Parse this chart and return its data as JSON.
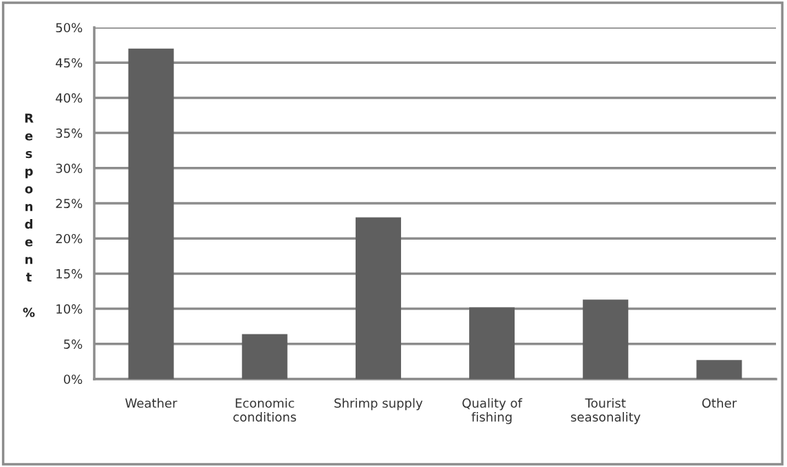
{
  "chart_data": {
    "type": "bar",
    "ylabel": "Respondent %",
    "categories": [
      "Weather",
      "Economic\nconditions",
      "Shrimp supply",
      "Quality of\nfishing",
      "Tourist\nseasonality",
      "Other"
    ],
    "values": [
      47.0,
      6.4,
      23.0,
      10.2,
      11.3,
      2.7
    ],
    "color": "#5f5f5f",
    "ylim": [
      0,
      50
    ],
    "yticks": [
      {
        "value": 0,
        "label": "0%"
      },
      {
        "value": 5,
        "label": "5%"
      },
      {
        "value": 10,
        "label": "10%"
      },
      {
        "value": 15,
        "label": "15%"
      },
      {
        "value": 20,
        "label": "20%"
      },
      {
        "value": 25,
        "label": "25%"
      },
      {
        "value": 30,
        "label": "30%"
      },
      {
        "value": 35,
        "label": "35%"
      },
      {
        "value": 40,
        "label": "40%"
      },
      {
        "value": 45,
        "label": "45%"
      },
      {
        "value": 50,
        "label": "50%"
      }
    ],
    "grid": "y",
    "legend": false
  }
}
